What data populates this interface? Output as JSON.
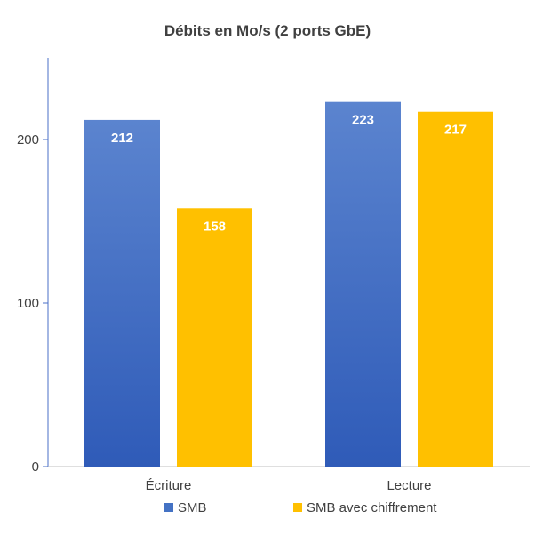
{
  "chart_data": {
    "type": "bar",
    "title": "Débits en Mo/s (2 ports GbE)",
    "categories": [
      "Écriture",
      "Lecture"
    ],
    "series": [
      {
        "name": "SMB",
        "values": [
          212,
          223
        ],
        "color": "#4472C4"
      },
      {
        "name": "SMB avec chiffrement",
        "values": [
          158,
          217
        ],
        "color": "#FFC000"
      }
    ],
    "yticks": [
      0,
      100,
      200
    ],
    "ylim": [
      0,
      250
    ],
    "grid": false,
    "legend_position": "bottom",
    "data_labels": true
  }
}
